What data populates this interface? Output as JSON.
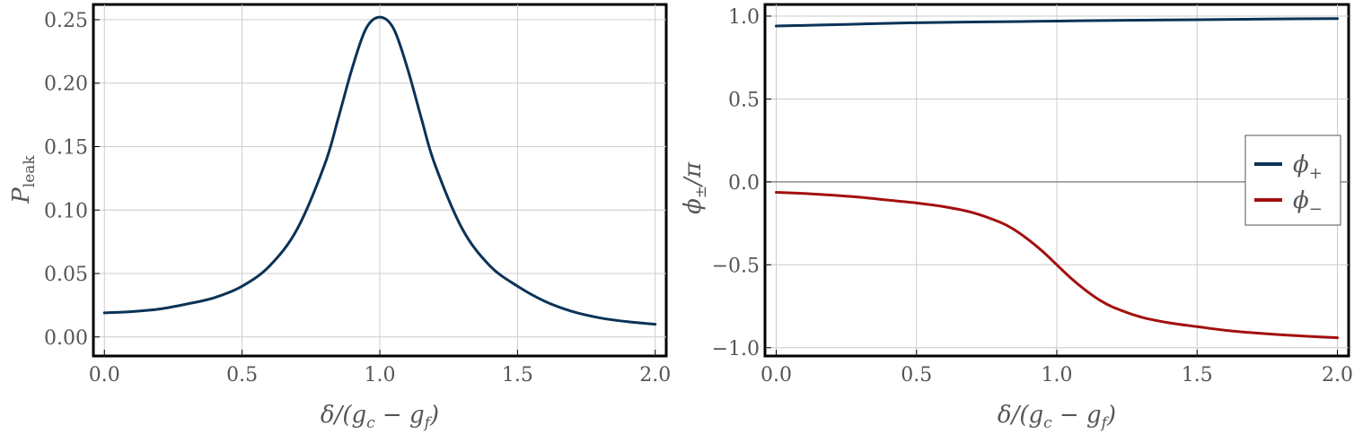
{
  "chart_data": [
    {
      "type": "line",
      "xlabel": "δ/(g_c − g_f)",
      "ylabel": "P_leak",
      "xlim": [
        -0.04,
        2.04
      ],
      "ylim": [
        -0.015,
        0.262
      ],
      "xticks": [
        0.0,
        0.5,
        1.0,
        1.5,
        2.0
      ],
      "xtick_labels": [
        "0.0",
        "0.5",
        "1.0",
        "1.5",
        "2.0"
      ],
      "yticks": [
        0.0,
        0.05,
        0.1,
        0.15,
        0.2,
        0.25
      ],
      "ytick_labels": [
        "0.00",
        "0.05",
        "0.10",
        "0.15",
        "0.20",
        "0.25"
      ],
      "grid": true,
      "series": [
        {
          "color": "#0b3358",
          "x": [
            0.0,
            0.1,
            0.2,
            0.3,
            0.4,
            0.5,
            0.6,
            0.7,
            0.8,
            0.85,
            0.9,
            0.95,
            1.0,
            1.05,
            1.1,
            1.15,
            1.2,
            1.3,
            1.4,
            1.5,
            1.6,
            1.7,
            1.8,
            1.9,
            2.0
          ],
          "y": [
            0.019,
            0.02,
            0.022,
            0.026,
            0.031,
            0.04,
            0.056,
            0.085,
            0.136,
            0.173,
            0.212,
            0.243,
            0.252,
            0.243,
            0.212,
            0.173,
            0.136,
            0.085,
            0.056,
            0.04,
            0.028,
            0.02,
            0.015,
            0.012,
            0.01
          ]
        }
      ]
    },
    {
      "type": "line",
      "xlabel": "δ/(g_c − g_f)",
      "ylabel": "ϕ±/π",
      "xlim": [
        -0.04,
        2.04
      ],
      "ylim": [
        -1.05,
        1.07
      ],
      "xticks": [
        0.0,
        0.5,
        1.0,
        1.5,
        2.0
      ],
      "xtick_labels": [
        "0.0",
        "0.5",
        "1.0",
        "1.5",
        "2.0"
      ],
      "yticks": [
        -1.0,
        -0.5,
        0.0,
        0.5,
        1.0
      ],
      "ytick_labels": [
        "−1.0",
        "−0.5",
        "0.0",
        "0.5",
        "1.0"
      ],
      "grid": true,
      "zero_line": true,
      "legend": "right",
      "series": [
        {
          "name": "ϕ+",
          "color": "#0b3358",
          "x": [
            0.0,
            0.25,
            0.5,
            0.75,
            1.0,
            1.25,
            1.5,
            1.75,
            2.0
          ],
          "y": [
            0.94,
            0.95,
            0.96,
            0.965,
            0.97,
            0.975,
            0.978,
            0.982,
            0.985
          ]
        },
        {
          "name": "ϕ−",
          "color": "#a30f0f",
          "x": [
            0.0,
            0.1,
            0.2,
            0.3,
            0.4,
            0.5,
            0.6,
            0.7,
            0.8,
            0.85,
            0.9,
            0.95,
            1.0,
            1.05,
            1.1,
            1.15,
            1.2,
            1.3,
            1.4,
            1.5,
            1.6,
            1.7,
            1.8,
            1.9,
            2.0
          ],
          "y": [
            -0.063,
            -0.07,
            -0.08,
            -0.093,
            -0.11,
            -0.127,
            -0.15,
            -0.185,
            -0.245,
            -0.29,
            -0.35,
            -0.42,
            -0.5,
            -0.58,
            -0.65,
            -0.71,
            -0.755,
            -0.815,
            -0.85,
            -0.873,
            -0.895,
            -0.91,
            -0.922,
            -0.932,
            -0.94
          ]
        }
      ]
    }
  ]
}
